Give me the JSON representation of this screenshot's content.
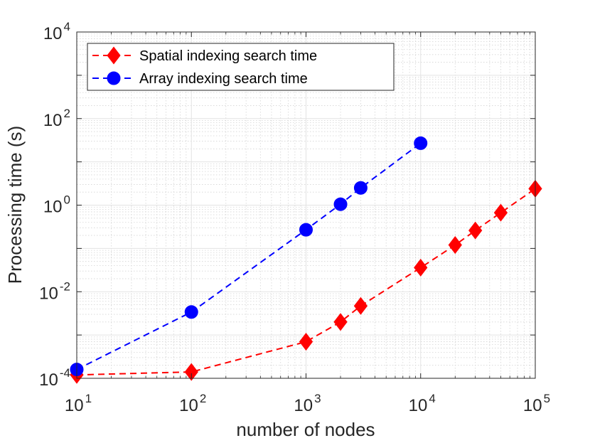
{
  "chart_data": {
    "type": "line",
    "xscale": "log",
    "yscale": "log",
    "xlim": [
      10,
      100000
    ],
    "ylim": [
      0.0001,
      10000
    ],
    "xlabel": "number of nodes",
    "ylabel": "Processing time (s)",
    "x_ticks": [
      {
        "value": 10,
        "base": "10",
        "exp": "1"
      },
      {
        "value": 100,
        "base": "10",
        "exp": "2"
      },
      {
        "value": 1000,
        "base": "10",
        "exp": "3"
      },
      {
        "value": 10000,
        "base": "10",
        "exp": "4"
      },
      {
        "value": 100000,
        "base": "10",
        "exp": "5"
      }
    ],
    "y_ticks": [
      {
        "value": 0.0001,
        "base": "10",
        "exp": "-4"
      },
      {
        "value": 0.01,
        "base": "10",
        "exp": "-2"
      },
      {
        "value": 1,
        "base": "10",
        "exp": "0"
      },
      {
        "value": 100,
        "base": "10",
        "exp": "2"
      },
      {
        "value": 10000,
        "base": "10",
        "exp": "4"
      }
    ],
    "grid": true,
    "minor_grid": true,
    "legend_position": "top-left",
    "series": [
      {
        "name": "Spatial indexing search time",
        "color": "#ff0000",
        "marker": "diamond",
        "line_style": "dashed",
        "x": [
          10,
          100,
          1000,
          2000,
          3000,
          10000,
          20000,
          30000,
          50000,
          100000
        ],
        "y": [
          0.00012,
          0.00014,
          0.0007,
          0.002,
          0.0047,
          0.036,
          0.12,
          0.26,
          0.67,
          2.4
        ]
      },
      {
        "name": "Array indexing search time",
        "color": "#0000ff",
        "marker": "circle",
        "line_style": "dashed",
        "x": [
          10,
          100,
          1000,
          2000,
          3000,
          10000
        ],
        "y": [
          0.00016,
          0.0034,
          0.27,
          1.05,
          2.5,
          27
        ]
      }
    ]
  }
}
